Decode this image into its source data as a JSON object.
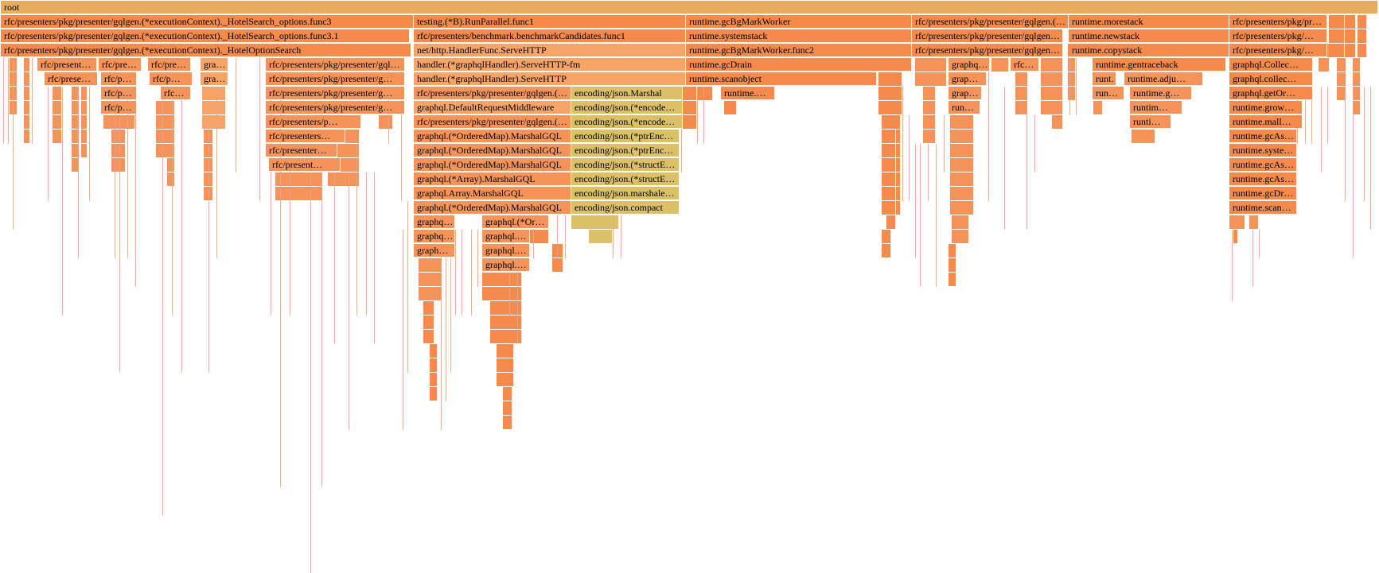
{
  "flamegraph": {
    "colors": {
      "root": "#e8ac5e",
      "hot": "#f48a4c",
      "mid": "#f5945a",
      "light": "#f7a468",
      "yellow": "#dcc068",
      "deep": "#f57c48"
    },
    "frames": [
      {
        "text": "root",
        "c": "root"
      },
      {
        "text": "rfc/presenters/pkg/presenter/gqlgen.(*executionContext)._HotelSearch_options.func3",
        "c": "hot"
      },
      {
        "text": "testing.(*B).RunParallel.func1",
        "c": "hot"
      },
      {
        "text": "runtime.gcBgMarkWorker",
        "c": "hot"
      },
      {
        "text": "rfc/presenters/pkg/presenter/gqlgen.(…",
        "c": "hot"
      },
      {
        "text": "runtime.morestack",
        "c": "hot"
      },
      {
        "text": "rfc/presenters/pkg/pr…",
        "c": "hot"
      },
      {
        "text": "rfc/presenters/pkg/presenter/gqlgen.(*executionContext)._HotelSearch_options.func3.1",
        "c": "hot"
      },
      {
        "text": "rfc/presenters/benchmark.benchmarkCandidates.func1",
        "c": "hot"
      },
      {
        "text": "runtime.systemstack",
        "c": "hot"
      },
      {
        "text": "rfc/presenters/pkg/presenter/gqlgen…",
        "c": "hot"
      },
      {
        "text": "runtime.newstack",
        "c": "hot"
      },
      {
        "text": "rfc/presenters/pkg/…",
        "c": "hot"
      },
      {
        "text": "rfc/presenters/pkg/presenter/gqlgen.(*executionContext)._HotelOptionSearch",
        "c": "hot"
      },
      {
        "text": "net/http.HandlerFunc.ServeHTTP",
        "c": "light"
      },
      {
        "text": "runtime.gcBgMarkWorker.func2",
        "c": "hot"
      },
      {
        "text": "rfc/presenters/pkg/presenter/gqlgen…",
        "c": "hot"
      },
      {
        "text": "runtime.copystack",
        "c": "hot"
      },
      {
        "text": "rfc/presenters/pkg/…",
        "c": "hot"
      },
      {
        "text": "rfc/present…",
        "c": "mid"
      },
      {
        "text": "rfc/pre…",
        "c": "mid"
      },
      {
        "text": "rfc/pre…",
        "c": "mid"
      },
      {
        "text": "gra…",
        "c": "light"
      },
      {
        "text": "rfc/presenters/pkg/presenter/gql…",
        "c": "mid"
      },
      {
        "text": "handler.(*graphqlHandler).ServeHTTP-fm",
        "c": "light"
      },
      {
        "text": "runtime.gcDrain",
        "c": "hot"
      },
      {
        "text": "graphq…",
        "c": "mid"
      },
      {
        "text": "rfc…",
        "c": "mid"
      },
      {
        "text": "runtime.gentraceback",
        "c": "hot"
      },
      {
        "text": "graphql.Collec…",
        "c": "hot"
      },
      {
        "text": "rfc/prese…",
        "c": "mid"
      },
      {
        "text": "rfc/p…",
        "c": "mid"
      },
      {
        "text": "rfc/p…",
        "c": "mid"
      },
      {
        "text": "gra…",
        "c": "light"
      },
      {
        "text": "rfc/presenters/pkg/presenter/g…",
        "c": "mid"
      },
      {
        "text": "handler.(*graphqlHandler).ServeHTTP",
        "c": "light"
      },
      {
        "text": "runtime.scanobject",
        "c": "hot"
      },
      {
        "text": "grap…",
        "c": "mid"
      },
      {
        "text": "runt…",
        "c": "mid"
      },
      {
        "text": "runtime.adju…",
        "c": "mid"
      },
      {
        "text": "graphql.collec…",
        "c": "hot"
      },
      {
        "text": "rfc/p…",
        "c": "mid"
      },
      {
        "text": "rfc…",
        "c": "mid"
      },
      {
        "text": "rfc/presenters/pkg/presenter/g…",
        "c": "mid"
      },
      {
        "text": "rfc/presenters/pkg/presenter/gqlgen.(…",
        "c": "mid"
      },
      {
        "text": "encoding/json.Marshal",
        "c": "yellow"
      },
      {
        "text": "runtime.…",
        "c": "hot"
      },
      {
        "text": "grap…",
        "c": "mid"
      },
      {
        "text": "run…",
        "c": "mid"
      },
      {
        "text": "runtime.g…",
        "c": "mid"
      },
      {
        "text": "graphql.getOr…",
        "c": "hot"
      },
      {
        "text": "rfc/p…",
        "c": "mid"
      },
      {
        "text": "rfc/presenters/pkg/presenter/g…",
        "c": "mid"
      },
      {
        "text": "graphql.DefaultRequestMiddleware",
        "c": "light"
      },
      {
        "text": "encoding/json.(*encode…",
        "c": "yellow"
      },
      {
        "text": "run…",
        "c": "mid"
      },
      {
        "text": "runtim…",
        "c": "mid"
      },
      {
        "text": "runtime.grow…",
        "c": "hot"
      },
      {
        "text": "rfc/presenters/p…",
        "c": "mid"
      },
      {
        "text": "rfc/presenters/pkg/presenter/gqlgen.(…",
        "c": "mid"
      },
      {
        "text": "encoding/json.(*encode…",
        "c": "yellow"
      },
      {
        "text": "runti…",
        "c": "mid"
      },
      {
        "text": "runtime.mall…",
        "c": "hot"
      },
      {
        "text": "rfc/presenters…",
        "c": "mid"
      },
      {
        "text": "graphql.(*OrderedMap).MarshalGQL",
        "c": "mid"
      },
      {
        "text": "encoding/json.(*ptrEnc…",
        "c": "yellow"
      },
      {
        "text": "runtime.gcAs…",
        "c": "hot"
      },
      {
        "text": "rfc/presenter…",
        "c": "mid"
      },
      {
        "text": "graphql.(*OrderedMap).MarshalGQL",
        "c": "mid"
      },
      {
        "text": "encoding/json.(*ptrEnc…",
        "c": "yellow"
      },
      {
        "text": "runtime.syste…",
        "c": "hot"
      },
      {
        "text": "rfc/present…",
        "c": "mid"
      },
      {
        "text": "graphql.(*OrderedMap).MarshalGQL",
        "c": "mid"
      },
      {
        "text": "encoding/json.(*structE…",
        "c": "yellow"
      },
      {
        "text": "runtime.gcAs…",
        "c": "hot"
      },
      {
        "text": "graphql.(*Array).MarshalGQL",
        "c": "mid"
      },
      {
        "text": "encoding/json.(*structE…",
        "c": "yellow"
      },
      {
        "text": "runtime.gcAs…",
        "c": "hot"
      },
      {
        "text": "graphql.Array.MarshalGQL",
        "c": "mid"
      },
      {
        "text": "encoding/json.marshale…",
        "c": "yellow"
      },
      {
        "text": "runtime.gcDr…",
        "c": "hot"
      },
      {
        "text": "graphql.(*OrderedMap).MarshalGQL",
        "c": "mid"
      },
      {
        "text": "encoding/json.compact",
        "c": "yellow"
      },
      {
        "text": "runtime.scan…",
        "c": "hot"
      },
      {
        "text": "graphq…",
        "c": "mid"
      },
      {
        "text": "graphql.(*Or…",
        "c": "mid"
      },
      {
        "text": "graphq…",
        "c": "mid"
      },
      {
        "text": "graphql.…",
        "c": "mid"
      },
      {
        "text": "graph…",
        "c": "mid"
      },
      {
        "text": "graphql.…",
        "c": "mid"
      },
      {
        "text": "graphql.…",
        "c": "mid"
      }
    ]
  }
}
